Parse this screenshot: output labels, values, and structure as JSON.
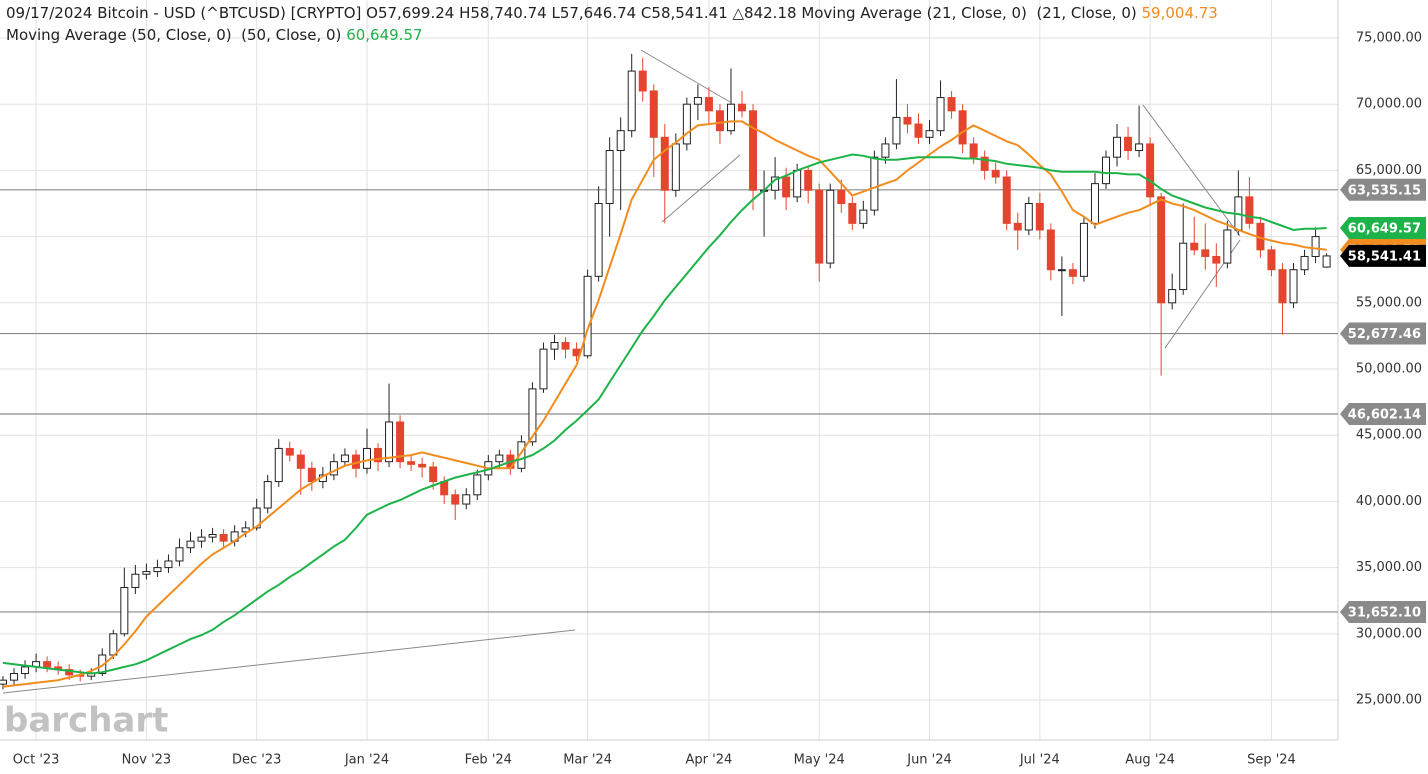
{
  "chart_data": {
    "type": "candlestick",
    "title": "09/17/2024 Bitcoin - USD (^BTCUSD) [CRYPTO] O57,699.24 H58,740.74 L57,646.74 C58,541.41 △842.18",
    "watermark": "barchart",
    "categories": [
      null,
      null,
      null,
      "Oct '23",
      null,
      null,
      null,
      null,
      null,
      null,
      null,
      null,
      null,
      "Nov '23",
      null,
      null,
      null,
      null,
      null,
      null,
      null,
      null,
      null,
      "Dec '23",
      null,
      null,
      null,
      null,
      null,
      null,
      null,
      null,
      null,
      "Jan '24",
      null,
      null,
      null,
      null,
      null,
      null,
      null,
      null,
      null,
      null,
      "Feb '24",
      null,
      null,
      null,
      null,
      null,
      null,
      null,
      null,
      "Mar '24",
      null,
      null,
      null,
      null,
      null,
      null,
      null,
      null,
      null,
      null,
      "Apr '24",
      null,
      null,
      null,
      null,
      null,
      null,
      null,
      null,
      null,
      "May '24",
      null,
      null,
      null,
      null,
      null,
      null,
      null,
      null,
      null,
      "Jun '24",
      null,
      null,
      null,
      null,
      null,
      null,
      null,
      null,
      null,
      "Jul '24",
      null,
      null,
      null,
      null,
      null,
      null,
      null,
      null,
      null,
      "Aug '24",
      null,
      null,
      null,
      null,
      null,
      null,
      null,
      null,
      null,
      null,
      "Sep '24",
      null,
      null,
      null,
      null,
      null
    ],
    "open": [
      26200,
      26500,
      27000,
      27500,
      27900,
      27500,
      27300,
      26900,
      26800,
      27000,
      28400,
      30000,
      33500,
      34500,
      34700,
      35000,
      35500,
      36500,
      37000,
      37300,
      37500,
      37000,
      37700,
      38000,
      39500,
      41500,
      44000,
      43500,
      42500,
      41500,
      42000,
      43000,
      43500,
      42500,
      44000,
      43000,
      46000,
      43000,
      42800,
      42600,
      41500,
      40500,
      39800,
      40500,
      42000,
      43000,
      43500,
      42500,
      44500,
      48500,
      51500,
      52000,
      51500,
      51000,
      57000,
      62500,
      66500,
      68000,
      72500,
      71000,
      67500,
      63500,
      67000,
      70000,
      70500,
      69500,
      68000,
      70000,
      69500,
      63500,
      63500,
      64500,
      63000,
      65000,
      63500,
      58000,
      63500,
      62500,
      61000,
      62000,
      66000,
      67000,
      69000,
      68500,
      67500,
      68000,
      70500,
      69500,
      67000,
      66000,
      65000,
      64500,
      61000,
      60500,
      62500,
      60500,
      57500,
      57500,
      57000,
      61000,
      64000,
      66000,
      67500,
      66500,
      67000,
      63000,
      55000,
      56000,
      59500,
      59000,
      58500,
      58000,
      60500,
      63000,
      61000,
      59000,
      57500,
      55000,
      57500,
      58500,
      57699.24
    ],
    "high": [
      26800,
      27400,
      28000,
      28500,
      28300,
      27900,
      27700,
      27300,
      27400,
      28900,
      30300,
      35000,
      35200,
      35300,
      35600,
      36000,
      37200,
      37700,
      37900,
      38000,
      37900,
      38200,
      38500,
      40200,
      42000,
      44700,
      44500,
      43900,
      43000,
      42600,
      43600,
      44000,
      43900,
      45500,
      44400,
      48900,
      46500,
      43500,
      43300,
      43000,
      41900,
      40900,
      41000,
      42400,
      43500,
      43900,
      43900,
      45000,
      49000,
      52000,
      52600,
      52400,
      52000,
      57500,
      63800,
      67500,
      69000,
      73800,
      73500,
      71500,
      68500,
      67800,
      70500,
      71500,
      71300,
      70000,
      72700,
      71000,
      70000,
      65000,
      66000,
      65200,
      65500,
      65300,
      64000,
      64000,
      64300,
      63000,
      62700,
      66500,
      67500,
      71900,
      70000,
      69300,
      68800,
      71800,
      71000,
      70000,
      67500,
      66500,
      65600,
      65000,
      61800,
      63000,
      63300,
      61000,
      58500,
      58000,
      61500,
      64800,
      66500,
      68500,
      68300,
      69900,
      67500,
      63300,
      57200,
      62500,
      61500,
      61000,
      59500,
      61200,
      65000,
      64500,
      61500,
      59300,
      58000,
      58000,
      59000,
      60700,
      58740.74
    ],
    "low": [
      25800,
      26100,
      26600,
      27100,
      27100,
      26900,
      26500,
      26400,
      26500,
      26800,
      28100,
      29800,
      33000,
      34100,
      34300,
      34600,
      35100,
      36100,
      36500,
      36900,
      36400,
      36600,
      37300,
      37800,
      39100,
      41100,
      43000,
      40500,
      40800,
      41000,
      41600,
      42600,
      41800,
      42100,
      42300,
      42600,
      42500,
      42300,
      41800,
      40900,
      39800,
      38600,
      39400,
      40100,
      41600,
      42500,
      42000,
      42200,
      44200,
      48200,
      50700,
      50800,
      50600,
      50800,
      56600,
      60000,
      62000,
      67500,
      70200,
      64500,
      61000,
      63000,
      66500,
      68800,
      68500,
      67000,
      67700,
      69000,
      62000,
      60000,
      62800,
      62000,
      62600,
      62500,
      56600,
      57600,
      61800,
      60500,
      60600,
      61600,
      65500,
      66600,
      67800,
      67000,
      67000,
      67600,
      68900,
      66300,
      65500,
      64300,
      64000,
      60500,
      59000,
      60100,
      59800,
      56700,
      54000,
      56400,
      56600,
      60600,
      63600,
      65300,
      65800,
      66000,
      62300,
      49500,
      54500,
      55600,
      58600,
      57500,
      56200,
      57600,
      60100,
      60600,
      58400,
      57000,
      52600,
      54600,
      57100,
      58000,
      57646.74
    ],
    "close": [
      26500,
      27000,
      27500,
      27900,
      27500,
      27300,
      26900,
      26800,
      27000,
      28400,
      30000,
      33500,
      34500,
      34700,
      35000,
      35500,
      36500,
      37000,
      37300,
      37500,
      37000,
      37700,
      38000,
      39500,
      41500,
      44000,
      43500,
      42500,
      41500,
      42000,
      43000,
      43500,
      42500,
      44000,
      43000,
      46000,
      43000,
      42800,
      42600,
      41500,
      40500,
      39800,
      40500,
      42000,
      43000,
      43500,
      42500,
      44500,
      48500,
      51500,
      52000,
      51500,
      51000,
      57000,
      62500,
      66500,
      68000,
      72500,
      71000,
      67500,
      63500,
      67000,
      70000,
      70500,
      69500,
      68000,
      70000,
      69500,
      63500,
      63500,
      64500,
      63000,
      65000,
      63500,
      58000,
      63500,
      62500,
      61000,
      62000,
      66000,
      67000,
      69000,
      68500,
      67500,
      68000,
      70500,
      69500,
      67000,
      66000,
      65000,
      64500,
      61000,
      60500,
      62500,
      60500,
      57500,
      57500,
      57000,
      61000,
      64000,
      66000,
      67500,
      66500,
      67000,
      63000,
      55000,
      56000,
      59500,
      59000,
      58500,
      58000,
      60500,
      63000,
      61000,
      59000,
      57500,
      55000,
      57500,
      58500,
      60000,
      58541.41
    ],
    "close_label": "58,541.41",
    "up_color": "#ffffff",
    "down_color": "#e5442e",
    "close_tag_color": "#000000",
    "series": [
      {
        "name": "Moving Average (21, Close, 0)  (21, Close, 0)",
        "color": "#f28c1e",
        "last_label": "59,004.73",
        "values": [
          26000,
          26100,
          26200,
          26300,
          26400,
          26500,
          26700,
          26900,
          27200,
          27600,
          28300,
          29200,
          30200,
          31300,
          32100,
          32900,
          33700,
          34500,
          35300,
          36000,
          36500,
          37000,
          37600,
          38100,
          38800,
          39500,
          40200,
          40900,
          41400,
          41900,
          42300,
          42700,
          42900,
          43100,
          43200,
          43300,
          43400,
          43500,
          43700,
          43500,
          43300,
          43100,
          42900,
          42700,
          42500,
          42500,
          42500,
          43700,
          44900,
          46100,
          47500,
          48900,
          50300,
          53000,
          55200,
          57700,
          60200,
          62800,
          64300,
          65800,
          66500,
          67100,
          67800,
          68400,
          68500,
          68600,
          68700,
          68700,
          68200,
          67800,
          67300,
          66900,
          66500,
          66100,
          65800,
          64900,
          64000,
          63100,
          63400,
          63700,
          64000,
          64300,
          65000,
          65600,
          66200,
          66800,
          67300,
          67900,
          68400,
          68000,
          67600,
          67200,
          66900,
          66200,
          65400,
          64700,
          63400,
          62000,
          61500,
          60900,
          61200,
          61500,
          61800,
          62000,
          62400,
          62800,
          62500,
          62300,
          62000,
          61600,
          61200,
          60900,
          60500,
          60200,
          59900,
          59700,
          59500,
          59400,
          59200,
          59100,
          59004.73
        ]
      },
      {
        "name": "Moving Average (50, Close, 0)  (50, Close, 0)",
        "color": "#1db34a",
        "last_label": "60,649.57",
        "values": [
          27800,
          27700,
          27600,
          27500,
          27400,
          27300,
          27200,
          27100,
          27000,
          27100,
          27300,
          27500,
          27700,
          28000,
          28400,
          28800,
          29200,
          29600,
          29900,
          30300,
          30900,
          31400,
          32000,
          32600,
          33200,
          33700,
          34300,
          34800,
          35400,
          36000,
          36600,
          37100,
          38000,
          39000,
          39400,
          39800,
          40100,
          40500,
          40900,
          41200,
          41500,
          41800,
          42000,
          42200,
          42400,
          42700,
          43000,
          43200,
          43500,
          44000,
          44600,
          45400,
          46100,
          46900,
          47700,
          49000,
          50300,
          51600,
          52900,
          54000,
          55200,
          56200,
          57200,
          58200,
          59200,
          60100,
          61100,
          62000,
          62800,
          63500,
          64300,
          64600,
          65000,
          65300,
          65600,
          65800,
          66000,
          66200,
          66100,
          65900,
          65800,
          65800,
          65900,
          66000,
          66000,
          66000,
          66000,
          65900,
          65900,
          65800,
          65700,
          65500,
          65400,
          65300,
          65200,
          65000,
          64900,
          64900,
          64900,
          64900,
          64800,
          64800,
          64700,
          64700,
          64200,
          63600,
          63100,
          62800,
          62500,
          62200,
          62000,
          61800,
          61700,
          61500,
          61400,
          61100,
          60800,
          60500,
          60600,
          60600,
          60649.57
        ]
      }
    ],
    "hlines": [
      {
        "value": 63535.15,
        "label": "63,535.15"
      },
      {
        "value": 52677.46,
        "label": "52,677.46"
      },
      {
        "value": 46602.14,
        "label": "46,602.14"
      },
      {
        "value": 31652.1,
        "label": "31,652.10"
      }
    ],
    "hline_color": "#8a8a8a",
    "ylim": [
      21980,
      77870
    ],
    "yticks": [
      {
        "value": 25000,
        "label": "25,000.00"
      },
      {
        "value": 30000,
        "label": "30,000.00"
      },
      {
        "value": 35000,
        "label": "35,000.00"
      },
      {
        "value": 40000,
        "label": "40,000.00"
      },
      {
        "value": 45000,
        "label": "45,000.00"
      },
      {
        "value": 50000,
        "label": "50,000.00"
      },
      {
        "value": 55000,
        "label": "55,000.00"
      },
      {
        "value": 60000,
        "label": "60,000.00"
      },
      {
        "value": 65000,
        "label": "65,000.00"
      },
      {
        "value": 70000,
        "label": "70,000.00"
      },
      {
        "value": 75000,
        "label": "75,000.00"
      }
    ],
    "grid": true
  }
}
